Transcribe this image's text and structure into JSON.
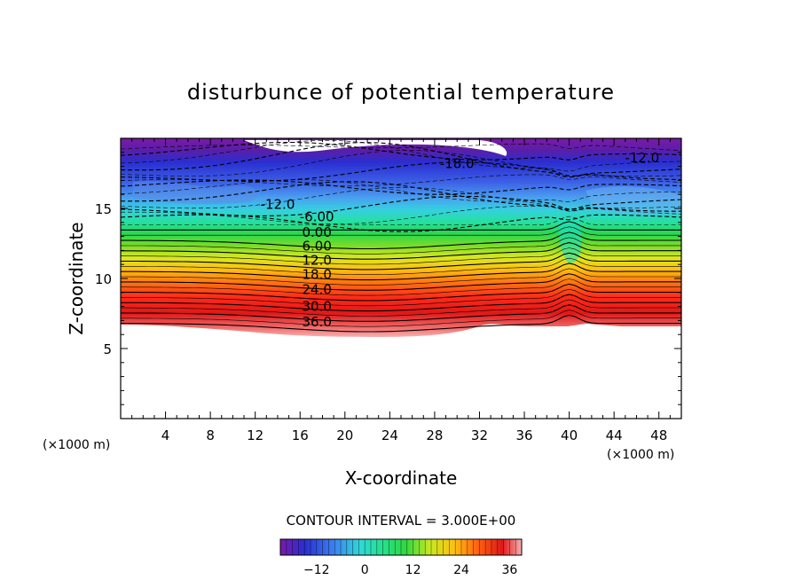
{
  "chart_data": {
    "type": "heatmap",
    "title": "disturbunce of potential temperature",
    "xlabel": "X-coordinate",
    "ylabel": "Z-coordinate",
    "x_unit": "(×1000 m)",
    "y_unit": "(×1000 m)",
    "xlim": [
      0,
      50
    ],
    "ylim": [
      0,
      20
    ],
    "x_ticks": [
      4,
      8,
      12,
      16,
      20,
      24,
      28,
      32,
      36,
      40,
      44,
      48
    ],
    "y_ticks": [
      5,
      10,
      15
    ],
    "contour_interval_text": "CONTOUR INTERVAL = 3.000E+00",
    "contour_interval": 3.0,
    "contour_labels": [
      {
        "text": "-18.0",
        "x": 30,
        "z": 18.2
      },
      {
        "text": "-12.0",
        "x": 46.5,
        "z": 18.6
      },
      {
        "text": "-12.0",
        "x": 14,
        "z": 15.3
      },
      {
        "text": "-6.00",
        "x": 17.5,
        "z": 14.4
      },
      {
        "text": "0.00",
        "x": 17.5,
        "z": 13.3
      },
      {
        "text": "6.00",
        "x": 17.5,
        "z": 12.3
      },
      {
        "text": "12.0",
        "x": 17.5,
        "z": 11.3
      },
      {
        "text": "18.0",
        "x": 17.5,
        "z": 10.3
      },
      {
        "text": "24.0",
        "x": 17.5,
        "z": 9.2
      },
      {
        "text": "30.0",
        "x": 17.5,
        "z": 8.0
      },
      {
        "text": "36.0",
        "x": 17.5,
        "z": 6.9
      }
    ],
    "colorbar": {
      "ticks": [
        "−12",
        "0",
        "12",
        "24",
        "36"
      ],
      "tick_values": [
        -12,
        0,
        12,
        24,
        36
      ],
      "range": [
        -21,
        39
      ]
    },
    "grid": false,
    "legend": "colorbar-bottom"
  }
}
